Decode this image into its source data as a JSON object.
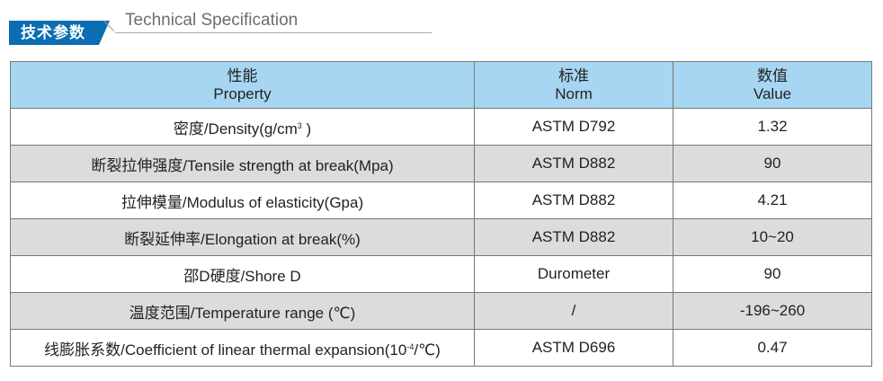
{
  "header": {
    "badge": "技术参数",
    "title": "Technical Specification",
    "badge_color": "#0b6db3",
    "header_color": "#a7d6f3"
  },
  "columns": [
    {
      "zh": "性能",
      "en": "Property"
    },
    {
      "zh": "标准",
      "en": "Norm"
    },
    {
      "zh": "数值",
      "en": "Value"
    }
  ],
  "rows": [
    {
      "property": "密度/Density(g/cm",
      "sup": "3",
      "suffix": " )",
      "norm": "ASTM D792",
      "value": "1.32"
    },
    {
      "property": "断裂拉伸强度/Tensile strength at break(Mpa)",
      "norm": "ASTM D882",
      "value": "90"
    },
    {
      "property": "拉伸模量/Modulus of elasticity(Gpa)",
      "norm": "ASTM D882",
      "value": "4.21"
    },
    {
      "property": "断裂延伸率/Elongation at break(%)",
      "norm": "ASTM D882",
      "value": "10~20"
    },
    {
      "property": "邵D硬度/Shore D",
      "norm": "Durometer",
      "value": "90"
    },
    {
      "property": "温度范围/Temperature range (℃)",
      "norm": "/",
      "value": "-196~260"
    },
    {
      "property": "线膨胀系数/Coefficient of linear thermal expansion(10",
      "sup": "-4",
      "suffix": "/℃)",
      "norm": "ASTM D696",
      "value": "0.47"
    }
  ]
}
